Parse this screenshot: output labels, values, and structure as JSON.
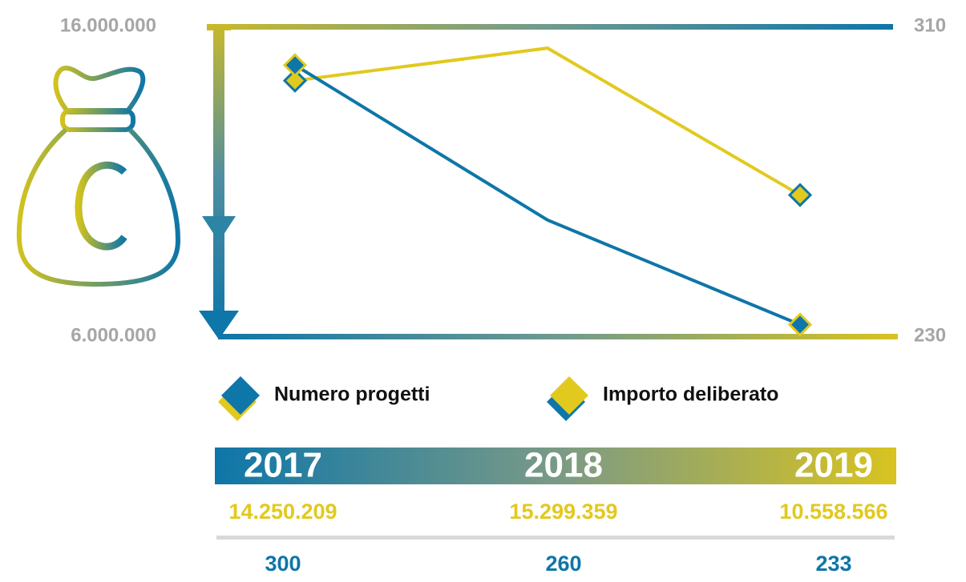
{
  "chart_data": {
    "type": "line",
    "categories": [
      "2017",
      "2018",
      "2019"
    ],
    "series": [
      {
        "name": "Numero progetti",
        "color": "#0e76a8",
        "axis": "y2",
        "values": [
          300,
          260,
          233
        ]
      },
      {
        "name": "Importo deliberato",
        "color": "#e2c91e",
        "axis": "y",
        "values": [
          14250209,
          15299359,
          10558566
        ],
        "value_labels": [
          "14.250.209",
          "15.299.359",
          "10.558.566"
        ]
      }
    ],
    "ylim": [
      6000000,
      16000000
    ],
    "yticks": [
      {
        "value": 6000000,
        "label": "6.000.000"
      },
      {
        "value": 16000000,
        "label": "16.000.000"
      }
    ],
    "y2lim": [
      230,
      310
    ],
    "y2ticks": [
      230,
      310
    ]
  }
}
